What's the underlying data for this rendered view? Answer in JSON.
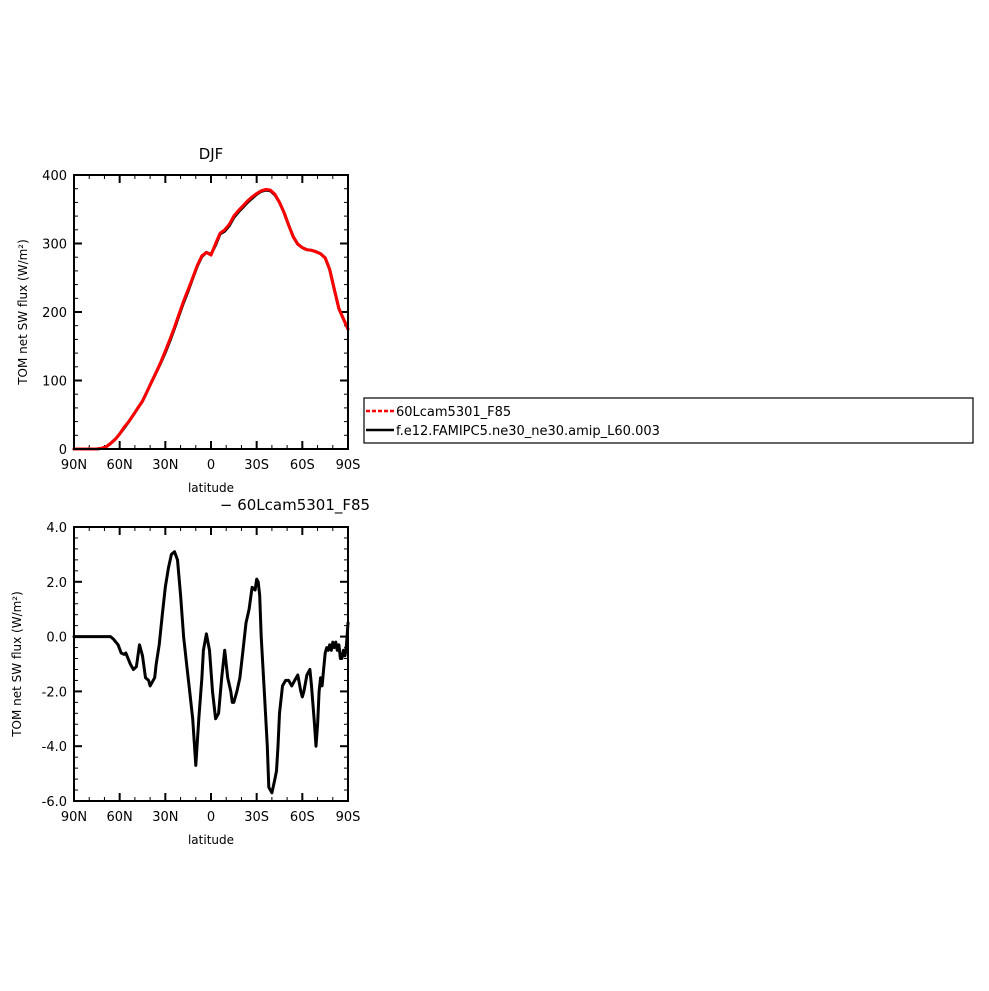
{
  "chart_data": [
    {
      "type": "line",
      "title": "DJF",
      "xlabel": "latitude",
      "ylabel": "TOM net SW flux (W/m²)",
      "xlim": [
        90,
        -90
      ],
      "ylim": [
        0,
        400
      ],
      "x_ticks": [
        {
          "value": 90,
          "label": "90N"
        },
        {
          "value": 60,
          "label": "60N"
        },
        {
          "value": 30,
          "label": "30N"
        },
        {
          "value": 0,
          "label": "0"
        },
        {
          "value": -30,
          "label": "30S"
        },
        {
          "value": -60,
          "label": "60S"
        },
        {
          "value": -90,
          "label": "90S"
        }
      ],
      "y_ticks": [
        {
          "value": 0,
          "label": "0"
        },
        {
          "value": 100,
          "label": "100"
        },
        {
          "value": 200,
          "label": "200"
        },
        {
          "value": 300,
          "label": "300"
        },
        {
          "value": 400,
          "label": "400"
        }
      ],
      "x": [
        90,
        87,
        84,
        81,
        78,
        75,
        72,
        69,
        66,
        63,
        60,
        57,
        54,
        51,
        48,
        45,
        42,
        39,
        36,
        33,
        30,
        27,
        24,
        21,
        18,
        15,
        12,
        9,
        6,
        3,
        0,
        -3,
        -6,
        -9,
        -12,
        -15,
        -18,
        -21,
        -24,
        -27,
        -30,
        -33,
        -36,
        -39,
        -42,
        -45,
        -48,
        -51,
        -54,
        -57,
        -60,
        -63,
        -66,
        -69,
        -72,
        -75,
        -78,
        -81,
        -84,
        -87,
        -90
      ],
      "series": [
        {
          "name": "60Lcam5301_F85",
          "color": "#ff0000",
          "style": "solid",
          "values": [
            0,
            0,
            0,
            0,
            0,
            0,
            1,
            3,
            8,
            14,
            22,
            32,
            40,
            50,
            60,
            70,
            84,
            98,
            112,
            127,
            143,
            160,
            178,
            197,
            216,
            233,
            250,
            268,
            282,
            287,
            283,
            300,
            315,
            320,
            328,
            340,
            348,
            355,
            362,
            368,
            373,
            377,
            379,
            378,
            372,
            360,
            345,
            327,
            310,
            299,
            294,
            291,
            290,
            288,
            285,
            279,
            262,
            233,
            205,
            190,
            175
          ]
        },
        {
          "name": "f.e12.FAMIPC5.ne30_ne30.amip_L60.003",
          "color": "#000000",
          "style": "solid",
          "values": [
            0,
            0,
            0,
            0,
            0,
            0,
            1,
            3,
            8,
            14,
            22,
            31,
            40,
            50,
            60,
            70,
            84,
            98,
            112,
            126,
            141,
            158,
            176,
            195,
            214,
            231,
            249,
            267,
            281,
            287,
            284,
            298,
            314,
            318,
            326,
            338,
            346,
            353,
            360,
            366,
            372,
            376,
            378,
            377,
            371,
            360,
            345,
            327,
            310,
            299,
            294,
            291,
            290,
            288,
            285,
            279,
            262,
            233,
            205,
            190,
            175
          ]
        }
      ],
      "legend": {
        "placement": "right",
        "entries": [
          "60Lcam5301_F85",
          "f.e12.FAMIPC5.ne30_ne30.amip_L60.003"
        ]
      }
    },
    {
      "type": "line",
      "title": "− 60Lcam5301_F85",
      "xlabel": "latitude",
      "ylabel": "TOM net SW flux (W/m²)",
      "xlim": [
        90,
        -90
      ],
      "ylim": [
        -6,
        4
      ],
      "x_ticks": [
        {
          "value": 90,
          "label": "90N"
        },
        {
          "value": 60,
          "label": "60N"
        },
        {
          "value": 30,
          "label": "30N"
        },
        {
          "value": 0,
          "label": "0"
        },
        {
          "value": -30,
          "label": "30S"
        },
        {
          "value": -60,
          "label": "60S"
        },
        {
          "value": -90,
          "label": "90S"
        }
      ],
      "y_ticks": [
        {
          "value": -6,
          "label": "-6.0"
        },
        {
          "value": -4,
          "label": "-4.0"
        },
        {
          "value": -2,
          "label": "-2.0"
        },
        {
          "value": 0,
          "label": "0.0"
        },
        {
          "value": 2,
          "label": "2.0"
        },
        {
          "value": 4,
          "label": "4.0"
        }
      ],
      "series": [
        {
          "color": "#000000",
          "x": [
            90,
            80,
            70,
            66,
            64,
            61,
            59,
            57,
            56,
            53,
            51,
            49,
            47,
            45,
            43,
            41,
            40,
            37,
            36,
            34,
            32,
            30,
            28,
            26,
            24,
            22,
            20,
            18,
            16,
            14,
            12,
            10,
            8,
            6,
            5,
            3,
            1,
            -1,
            -3,
            -5,
            -7,
            -8,
            -9,
            -11,
            -13,
            -14,
            -15,
            -17,
            -19,
            -21,
            -23,
            -25,
            -27,
            -29,
            -30,
            -31,
            -32,
            -33,
            -35,
            -37,
            -38,
            -40,
            -42,
            -43,
            -44,
            -45,
            -47,
            -49,
            -51,
            -53,
            -55,
            -57,
            -59,
            -60,
            -61,
            -62,
            -63,
            -65,
            -66,
            -67,
            -68,
            -69,
            -70,
            -71,
            -72,
            -73,
            -74,
            -75,
            -76,
            -77,
            -78,
            -79,
            -80,
            -81,
            -82,
            -83,
            -84,
            -85,
            -86,
            -87,
            -88,
            -89,
            -90
          ],
          "values": [
            0,
            0,
            0,
            0,
            -0.1,
            -0.3,
            -0.6,
            -0.65,
            -0.6,
            -1.0,
            -1.2,
            -1.1,
            -0.3,
            -0.7,
            -1.5,
            -1.6,
            -1.8,
            -1.5,
            -1.0,
            -0.3,
            0.8,
            1.8,
            2.5,
            3.0,
            3.1,
            2.8,
            1.5,
            0.0,
            -1.0,
            -2.0,
            -3.0,
            -4.7,
            -3.0,
            -1.5,
            -0.5,
            0.1,
            -0.5,
            -2.0,
            -3.0,
            -2.8,
            -1.5,
            -1.0,
            -0.5,
            -1.5,
            -2.0,
            -2.4,
            -2.4,
            -2.0,
            -1.5,
            -0.5,
            0.5,
            1.0,
            1.8,
            1.7,
            2.1,
            2.0,
            1.5,
            0.0,
            -2.0,
            -4.0,
            -5.5,
            -5.7,
            -5.2,
            -4.9,
            -4.0,
            -2.8,
            -1.8,
            -1.6,
            -1.6,
            -1.8,
            -1.6,
            -1.4,
            -2.0,
            -2.2,
            -2.0,
            -1.7,
            -1.4,
            -1.2,
            -1.8,
            -2.5,
            -3.2,
            -4.0,
            -3.2,
            -2.0,
            -1.5,
            -1.8,
            -1.2,
            -0.6,
            -0.4,
            -0.5,
            -0.3,
            -0.5,
            -0.2,
            -0.4,
            -0.2,
            -0.5,
            -0.3,
            -0.8,
            -0.8,
            -0.5,
            -0.7,
            -0.3,
            0.5
          ]
        }
      ]
    }
  ]
}
